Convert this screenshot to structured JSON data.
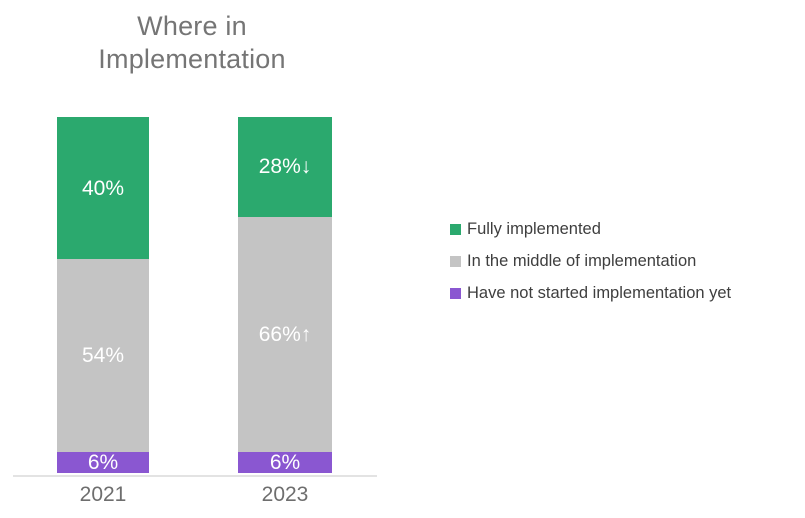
{
  "title": "Where in\nImplementation",
  "colors": {
    "green": "#2BA96E",
    "gray": "#C4C4C4",
    "purple": "#8A57D1",
    "axis_line": "#E3E3E3",
    "title_text": "#757575",
    "tick_text": "#6E6E6E",
    "legend_text": "#3E3E3E",
    "bar_label_text": "#FFFFFF"
  },
  "chart_data": {
    "type": "bar",
    "subtype": "stacked-100-percent",
    "title": "Where in Implementation",
    "categories": [
      "2021",
      "2023"
    ],
    "series": [
      {
        "name": "Fully implemented",
        "color": "#2BA96E",
        "values": [
          40,
          28
        ],
        "labels": [
          "40%",
          "28%↓"
        ]
      },
      {
        "name": "In the middle of implementation",
        "color": "#C4C4C4",
        "values": [
          54,
          66
        ],
        "labels": [
          "54%",
          "66%↑"
        ]
      },
      {
        "name": "Have not started implementation yet",
        "color": "#8A57D1",
        "values": [
          6,
          6
        ],
        "labels": [
          "6%",
          "6%"
        ]
      }
    ],
    "ylim": [
      0,
      100
    ],
    "grid": false,
    "legend_position": "right",
    "annotations": [
      "2023 fully implemented down arrow",
      "2023 in-middle up arrow"
    ]
  },
  "legend": {
    "items": [
      {
        "label": "Fully implemented",
        "color": "#2BA96E"
      },
      {
        "label": "In the middle of implementation",
        "color": "#C4C4C4"
      },
      {
        "label": "Have not started implementation yet",
        "color": "#8A57D1"
      }
    ]
  }
}
